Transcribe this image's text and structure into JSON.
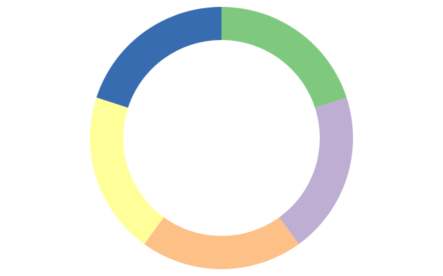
{
  "chart_data": {
    "type": "pie",
    "variant": "donut",
    "title": "",
    "start": "top",
    "direction": "clockwise",
    "slices": [
      {
        "value": 1,
        "color": "#7fc97f"
      },
      {
        "value": 1,
        "color": "#beaed4"
      },
      {
        "value": 1,
        "color": "#fdc086"
      },
      {
        "value": 1,
        "color": "#ffff99"
      },
      {
        "value": 1,
        "color": "#386cb0"
      }
    ],
    "legend": "none",
    "data_labels": "none"
  }
}
